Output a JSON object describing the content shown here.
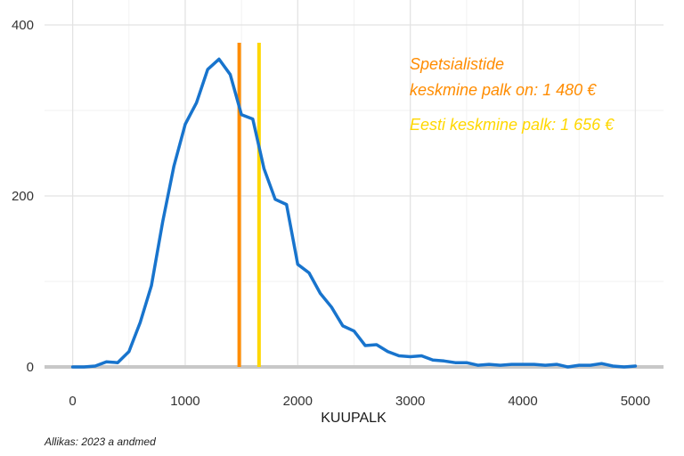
{
  "chart_data": {
    "type": "line",
    "xlabel": "KUUPALK",
    "ylabel": "",
    "xlim": [
      -250,
      5250
    ],
    "ylim": [
      0,
      400
    ],
    "x_ticks": [
      "0",
      "1000",
      "2000",
      "3000",
      "4000",
      "5000"
    ],
    "y_ticks": [
      "0",
      "200",
      "400"
    ],
    "grid": true,
    "series": [
      {
        "color": "#1874cd",
        "x": [
          0,
          100,
          200,
          300,
          400,
          500,
          600,
          700,
          800,
          900,
          1000,
          1100,
          1200,
          1300,
          1400,
          1500,
          1600,
          1700,
          1800,
          1900,
          2000,
          2100,
          2200,
          2300,
          2400,
          2500,
          2600,
          2700,
          2800,
          2900,
          3000,
          3100,
          3200,
          3300,
          3400,
          3500,
          3600,
          3700,
          3800,
          3900,
          4000,
          4100,
          4200,
          4300,
          4400,
          4500,
          4600,
          4700,
          4800,
          4900,
          5000
        ],
        "y": [
          0,
          0,
          1,
          6,
          5,
          18,
          52,
          95,
          170,
          235,
          284,
          309,
          348,
          360,
          342,
          295,
          290,
          232,
          196,
          190,
          120,
          110,
          86,
          70,
          48,
          42,
          25,
          26,
          18,
          13,
          12,
          13,
          8,
          7,
          5,
          5,
          2,
          3,
          2,
          3,
          3,
          3,
          2,
          3,
          0,
          2,
          2,
          4,
          1,
          0,
          1
        ]
      }
    ],
    "vlines": [
      {
        "x": 1480,
        "color": "#ff8c00"
      },
      {
        "x": 1656,
        "color": "#ffd700"
      }
    ],
    "annotations": [
      {
        "lines": [
          "Spetsialistide",
          " keskmine palk on: 1 480 €"
        ],
        "color": "#ff8c00"
      },
      {
        "lines": [
          "Eesti keskmine palk: 1 656 €"
        ],
        "color": "#ffd700"
      }
    ],
    "source": "Allikas: 2023 a andmed"
  }
}
